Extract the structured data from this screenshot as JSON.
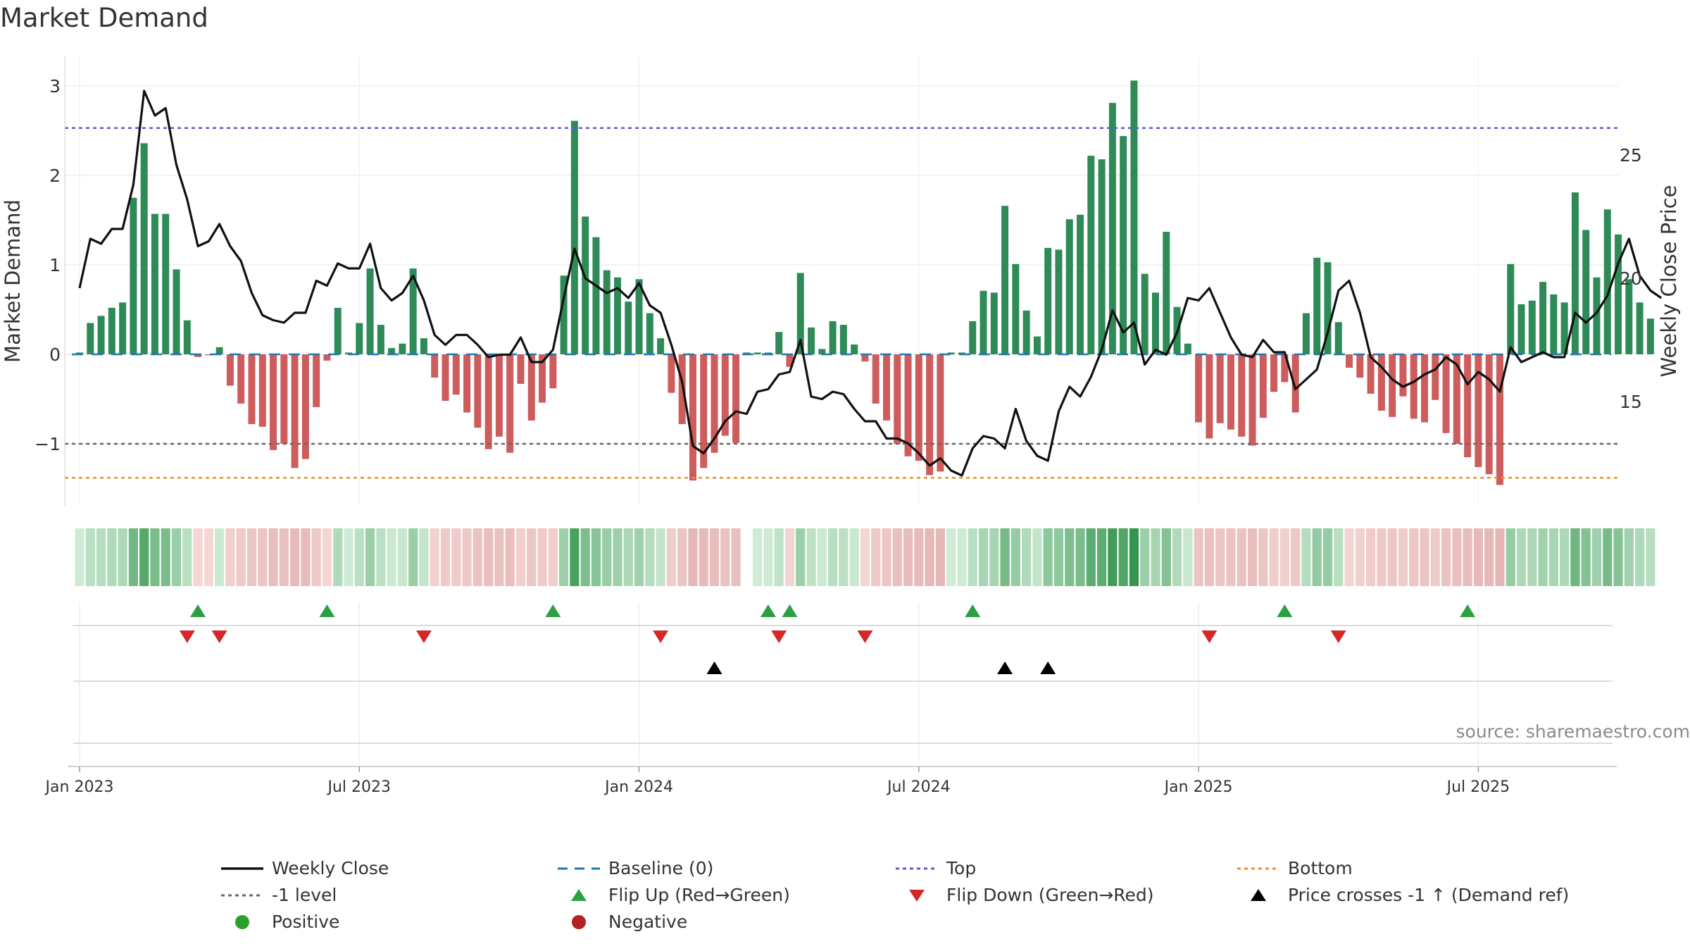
{
  "title": "Market Demand",
  "source": "source: sharemaestro.com",
  "colors": {
    "positive_bar": "#2e8b57",
    "negative_bar": "#cd5c5c",
    "line": "#111111",
    "baseline": "#1f77b4",
    "top": "#5b5bd6",
    "level": "#666666",
    "bottom": "#f0901f",
    "flip_up": "#2ca040",
    "flip_down": "#d62728",
    "cross": "#000000",
    "positive_dot": "#2ca02c",
    "negative_dot": "#b22222"
  },
  "chart_data": {
    "type": "bar+line",
    "title": "Market Demand",
    "ylabel": "Market Demand",
    "y2label": "Weekly Close Price",
    "ylim": [
      -1.7,
      3.3
    ],
    "y2lim": [
      10.6,
      28.9
    ],
    "y_ticks": [
      3,
      2,
      1,
      0,
      -1
    ],
    "y_tick_labels": [
      "3",
      "2",
      "1",
      "0",
      "−1"
    ],
    "y2_ticks": [
      25,
      20,
      15
    ],
    "y2_tick_labels": [
      "25",
      "20",
      "15"
    ],
    "x_ticks": [
      0,
      26,
      52,
      78,
      104,
      130
    ],
    "x_tick_labels": [
      "Jan 2023",
      "Jul 2023",
      "Jan 2024",
      "Jul 2024",
      "Jan 2025",
      "Jul 2025"
    ],
    "reference_lines": {
      "top": 2.53,
      "minus_one_level": -1.0,
      "bottom": -1.38,
      "baseline": 0
    },
    "demand": [
      0.02,
      0.35,
      0.43,
      0.52,
      0.58,
      1.75,
      2.36,
      1.57,
      1.57,
      0.95,
      0.38,
      -0.03,
      -0.01,
      0.08,
      -0.35,
      -0.55,
      -0.78,
      -0.81,
      -1.07,
      -1.0,
      -1.27,
      -1.17,
      -0.59,
      -0.07,
      0.52,
      0.02,
      0.35,
      0.96,
      0.33,
      0.07,
      0.12,
      0.96,
      0.18,
      -0.26,
      -0.52,
      -0.45,
      -0.65,
      -0.82,
      -1.06,
      -0.92,
      -1.1,
      -0.33,
      -0.74,
      -0.54,
      -0.38,
      0.88,
      2.61,
      1.54,
      1.31,
      0.94,
      0.86,
      0.59,
      0.84,
      0.46,
      0.18,
      -0.43,
      -0.78,
      -1.41,
      -1.27,
      -1.1,
      -0.91,
      -0.99,
      0.02,
      0.02,
      0.02,
      0.25,
      -0.14,
      0.91,
      0.3,
      0.06,
      0.37,
      0.33,
      0.11,
      -0.08,
      -0.55,
      -0.74,
      -1.0,
      -1.14,
      -1.19,
      -1.35,
      -1.31,
      0.02,
      0.02,
      0.37,
      0.71,
      0.69,
      1.66,
      1.01,
      0.49,
      0.2,
      1.19,
      1.17,
      1.51,
      1.56,
      2.22,
      2.18,
      2.81,
      2.44,
      3.06,
      0.9,
      0.69,
      1.37,
      0.53,
      0.12,
      -0.76,
      -0.94,
      -0.77,
      -0.84,
      -0.92,
      -1.02,
      -0.71,
      -0.42,
      -0.31,
      -0.65,
      0.46,
      1.08,
      1.03,
      0.36,
      -0.15,
      -0.26,
      -0.44,
      -0.63,
      -0.7,
      -0.47,
      -0.72,
      -0.76,
      -0.51,
      -0.88,
      -1.0,
      -1.15,
      -1.26,
      -1.34,
      -1.46,
      1.01,
      0.56,
      0.6,
      0.81,
      0.67,
      0.58,
      1.81,
      1.39,
      0.86,
      1.62,
      1.34,
      0.84,
      0.58,
      0.4
    ],
    "price": [
      19.6,
      21.6,
      21.4,
      22.0,
      22.0,
      23.8,
      27.6,
      26.6,
      26.9,
      24.6,
      23.2,
      21.3,
      21.5,
      22.2,
      21.3,
      20.7,
      19.4,
      18.5,
      18.3,
      18.2,
      18.6,
      18.6,
      19.9,
      19.7,
      20.6,
      20.4,
      20.4,
      21.4,
      19.6,
      19.1,
      19.4,
      20.1,
      19.1,
      17.7,
      17.3,
      17.7,
      17.7,
      17.3,
      16.8,
      16.9,
      16.9,
      17.6,
      16.6,
      16.6,
      17.1,
      19.2,
      21.2,
      20.0,
      19.7,
      19.4,
      19.6,
      19.2,
      19.8,
      18.9,
      18.6,
      17.3,
      15.8,
      13.2,
      12.9,
      13.5,
      14.2,
      14.6,
      14.5,
      15.4,
      15.5,
      16.1,
      16.2,
      17.5,
      15.2,
      15.1,
      15.4,
      15.3,
      14.7,
      14.2,
      14.2,
      13.5,
      13.5,
      13.3,
      12.9,
      12.4,
      12.7,
      12.2,
      12.0,
      13.1,
      13.6,
      13.5,
      13.1,
      14.7,
      13.4,
      12.8,
      12.6,
      14.6,
      15.6,
      15.2,
      16.0,
      17.1,
      18.7,
      17.8,
      18.2,
      16.5,
      17.1,
      16.9,
      17.8,
      19.2,
      19.1,
      19.6,
      18.6,
      17.6,
      16.9,
      16.8,
      17.5,
      17.0,
      17.0,
      15.5,
      15.9,
      16.3,
      17.8,
      19.5,
      19.9,
      18.6,
      16.8,
      16.4,
      15.9,
      15.6,
      15.8,
      16.1,
      16.3,
      16.8,
      16.5,
      15.7,
      16.2,
      15.9,
      15.4,
      17.2,
      16.6,
      16.8,
      17.0,
      16.8,
      16.8,
      18.6,
      18.2,
      18.6,
      19.3,
      20.6,
      21.6,
      20.1,
      19.5,
      19.2
    ],
    "flip_up_indices": [
      11,
      23,
      44,
      64,
      66,
      83,
      112,
      129
    ],
    "flip_down_indices": [
      10,
      13,
      32,
      54,
      65,
      73,
      105,
      117
    ],
    "price_cross_indices": [
      59,
      86,
      90
    ],
    "legend": [
      {
        "key": "weekly_close",
        "label": "Weekly Close"
      },
      {
        "key": "baseline",
        "label": "Baseline (0)"
      },
      {
        "key": "top",
        "label": "Top"
      },
      {
        "key": "bottom",
        "label": "Bottom"
      },
      {
        "key": "minus_one",
        "label": "-1 level"
      },
      {
        "key": "flip_up",
        "label": "Flip Up (Red→Green)"
      },
      {
        "key": "flip_down",
        "label": "Flip Down (Green→Red)"
      },
      {
        "key": "price_cross",
        "label": "Price crosses -1 ↑ (Demand ref)"
      },
      {
        "key": "positive",
        "label": "Positive"
      },
      {
        "key": "negative",
        "label": "Negative"
      }
    ]
  }
}
